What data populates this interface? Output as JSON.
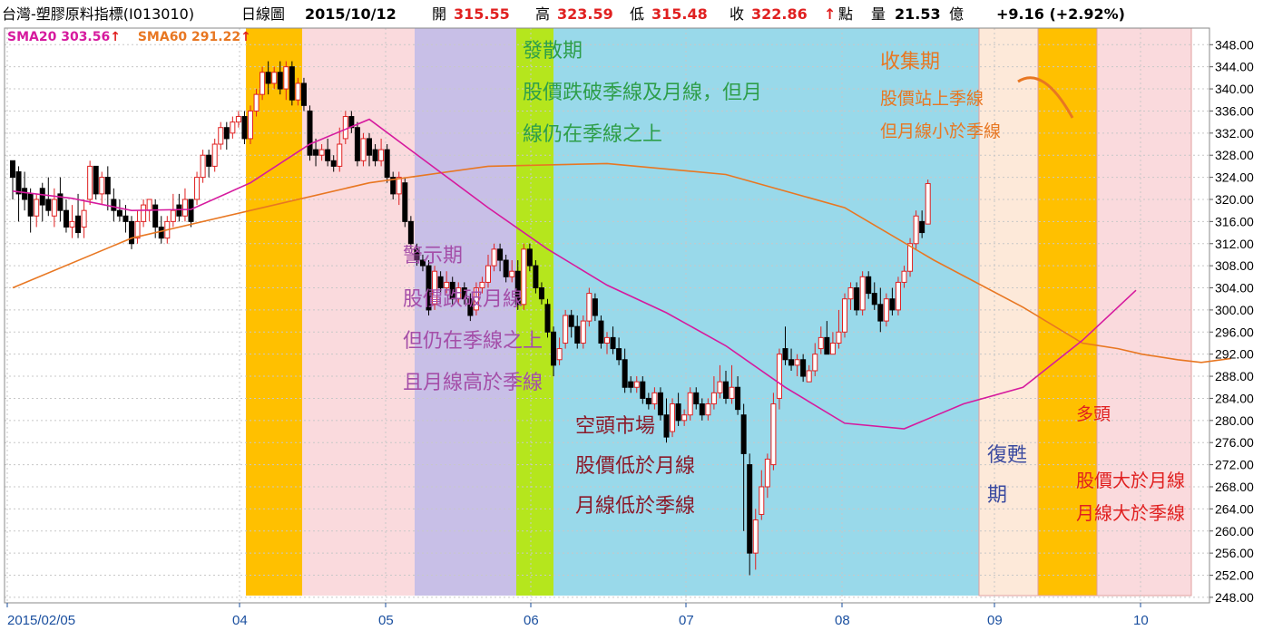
{
  "header": {
    "title": "台灣-塑膠原料指標(I013010)",
    "period": "日線圖",
    "date": "2015/10/12",
    "open_label": "開",
    "open": "315.55",
    "high_label": "高",
    "high": "323.59",
    "low_label": "低",
    "low": "315.48",
    "close_label": "收",
    "close": "322.86",
    "close_arrow": "↑",
    "point_label": "點",
    "volume_label": "量",
    "volume": "21.53",
    "volume_unit": "億",
    "change": "+9.16 (+2.92%)"
  },
  "legend": {
    "sma20": "SMA20 303.56",
    "sma20_arrow": "↑",
    "sma20_color": "#d61a9e",
    "sma60": "SMA60 291.22",
    "sma60_arrow": "↑",
    "sma60_color": "#e87722"
  },
  "annotations": {
    "diverge": [
      "發散期",
      "股價跌破季線及月線，但月",
      "線仍在季線之上"
    ],
    "warning": [
      "警示期",
      "股價跌破月線",
      "但仍在季線之上",
      "且月線高於季線"
    ],
    "bear": [
      "空頭市場",
      "股價低於月線",
      "月線低於季線"
    ],
    "collect": [
      "收集期",
      "股價站上季線",
      "但月線小於季線"
    ],
    "recovery": [
      "復甦",
      "期"
    ],
    "bull": [
      "多頭",
      "股價大於月線",
      "月線大於季線"
    ]
  },
  "colors": {
    "diverge": "#2e9e4a",
    "warning": "#a44ea8",
    "bear": "#8b1a2a",
    "collect": "#e87722",
    "recovery": "#3a4aa0",
    "bull": "#e02020",
    "candle_up": "#e02020",
    "candle_down": "#000000"
  },
  "chart_data": {
    "type": "candlestick",
    "y_ticks": [
      "348.00",
      "344.00",
      "340.00",
      "336.00",
      "332.00",
      "328.00",
      "324.00",
      "320.00",
      "316.00",
      "312.00",
      "308.00",
      "304.00",
      "300.00",
      "296.00",
      "292.00",
      "288.00",
      "284.00",
      "280.00",
      "276.00",
      "272.00",
      "268.00",
      "264.00",
      "260.00",
      "256.00",
      "252.00",
      "248.00"
    ],
    "x_ticks": [
      "2015/02/05",
      "04",
      "05",
      "06",
      "07",
      "08",
      "09",
      "10"
    ],
    "ylim": [
      247,
      351
    ],
    "candles": [
      [
        327,
        324,
        327,
        320
      ],
      [
        325,
        321,
        326,
        316
      ],
      [
        322,
        320,
        325,
        318
      ],
      [
        321,
        317,
        322,
        314
      ],
      [
        317,
        320,
        321,
        315
      ],
      [
        322,
        319,
        323,
        316
      ],
      [
        320,
        318,
        324,
        317
      ],
      [
        317,
        320,
        322,
        315
      ],
      [
        321,
        318,
        324,
        316
      ],
      [
        318,
        315,
        320,
        314
      ],
      [
        315,
        316,
        319,
        313
      ],
      [
        317,
        314,
        321,
        313
      ],
      [
        315,
        318,
        320,
        313
      ],
      [
        320,
        326,
        327,
        319
      ],
      [
        326,
        321,
        326,
        320
      ],
      [
        321,
        324,
        325,
        319
      ],
      [
        324,
        321,
        326,
        318
      ],
      [
        320,
        318,
        322,
        316
      ],
      [
        318,
        317,
        320,
        316
      ],
      [
        317,
        316,
        319,
        314
      ],
      [
        316,
        312,
        317,
        311
      ],
      [
        313,
        316,
        318,
        312
      ],
      [
        316,
        319,
        320,
        315
      ],
      [
        318,
        320,
        320,
        316
      ],
      [
        319,
        315,
        320,
        313
      ],
      [
        315,
        313,
        317,
        312
      ],
      [
        313,
        316,
        317,
        312
      ],
      [
        316,
        318,
        321,
        315
      ],
      [
        319,
        317,
        321,
        316
      ],
      [
        317,
        320,
        322,
        316
      ],
      [
        320,
        316,
        320,
        315
      ],
      [
        320,
        324,
        325,
        319
      ],
      [
        324,
        328,
        329,
        323
      ],
      [
        328,
        326,
        329,
        324
      ],
      [
        326,
        330,
        331,
        325
      ],
      [
        330,
        333,
        334,
        329
      ],
      [
        333,
        331,
        334,
        329
      ],
      [
        332,
        334,
        335,
        331
      ],
      [
        334,
        335,
        336,
        333
      ],
      [
        335,
        331,
        336,
        330
      ],
      [
        331,
        336,
        337,
        330
      ],
      [
        336,
        339,
        340,
        335
      ],
      [
        339,
        343,
        344,
        338
      ],
      [
        343,
        341,
        345,
        339
      ],
      [
        341,
        343,
        344,
        340
      ],
      [
        343,
        340,
        345,
        339
      ],
      [
        340,
        344,
        345,
        338
      ],
      [
        344,
        338,
        345,
        337
      ],
      [
        338,
        341,
        342,
        337
      ],
      [
        341,
        337,
        342,
        336
      ],
      [
        336,
        328,
        337,
        327
      ],
      [
        329,
        328,
        331,
        326
      ],
      [
        328,
        329,
        330,
        327
      ],
      [
        329,
        327,
        331,
        326
      ],
      [
        327,
        326,
        328,
        325
      ],
      [
        326,
        330,
        333,
        325
      ],
      [
        331,
        335,
        336,
        330
      ],
      [
        335,
        333,
        336,
        332
      ],
      [
        333,
        327,
        334,
        326
      ],
      [
        327,
        331,
        332,
        326
      ],
      [
        331,
        328,
        332,
        326
      ],
      [
        329,
        327,
        330,
        326
      ],
      [
        327,
        329,
        331,
        326
      ],
      [
        329,
        324,
        330,
        323
      ],
      [
        324,
        321,
        325,
        320
      ],
      [
        321,
        324,
        325,
        319
      ],
      [
        323,
        316,
        324,
        315
      ],
      [
        316,
        312,
        317,
        311
      ],
      [
        311,
        309,
        312,
        308
      ],
      [
        309,
        308,
        310,
        307
      ],
      [
        308,
        300,
        309,
        299
      ],
      [
        301,
        307,
        308,
        300
      ],
      [
        306,
        304,
        307,
        303
      ],
      [
        304,
        305,
        307,
        303
      ],
      [
        305,
        302,
        306,
        301
      ],
      [
        302,
        304,
        305,
        301
      ],
      [
        304,
        302,
        305,
        301
      ],
      [
        302,
        299,
        303,
        298
      ],
      [
        300,
        304,
        305,
        299
      ],
      [
        304,
        305,
        306,
        303
      ],
      [
        305,
        308,
        310,
        304
      ],
      [
        308,
        311,
        312,
        307
      ],
      [
        311,
        309,
        312,
        307
      ],
      [
        309,
        306,
        310,
        305
      ],
      [
        306,
        307,
        309,
        305
      ],
      [
        307,
        301,
        309,
        300
      ],
      [
        301,
        311,
        312,
        300
      ],
      [
        311,
        308,
        312,
        307
      ],
      [
        308,
        304,
        309,
        303
      ],
      [
        304,
        302,
        305,
        301
      ],
      [
        301,
        296,
        302,
        295
      ],
      [
        296,
        290,
        297,
        288
      ],
      [
        291,
        293,
        295,
        290
      ],
      [
        294,
        299,
        300,
        293
      ],
      [
        299,
        297,
        300,
        295
      ],
      [
        297,
        294,
        299,
        293
      ],
      [
        294,
        298,
        299,
        293
      ],
      [
        298,
        303,
        304,
        297
      ],
      [
        302,
        299,
        303,
        298
      ],
      [
        298,
        294,
        299,
        293
      ],
      [
        294,
        295,
        296,
        292
      ],
      [
        295,
        293,
        297,
        292
      ],
      [
        293,
        291,
        295,
        290
      ],
      [
        291,
        286,
        293,
        285
      ],
      [
        287,
        286,
        288,
        285
      ],
      [
        286,
        287,
        288,
        285
      ],
      [
        287,
        284,
        288,
        283
      ],
      [
        284,
        283,
        285,
        282
      ],
      [
        283,
        285,
        286,
        282
      ],
      [
        285,
        281,
        286,
        280
      ],
      [
        281,
        277,
        284,
        276
      ],
      [
        278,
        283,
        284,
        277
      ],
      [
        283,
        280,
        285,
        279
      ],
      [
        280,
        281,
        282,
        279
      ],
      [
        281,
        285,
        286,
        280
      ],
      [
        285,
        283,
        286,
        282
      ],
      [
        283,
        281,
        284,
        280
      ],
      [
        281,
        283,
        284,
        280
      ],
      [
        283,
        285,
        288,
        282
      ],
      [
        285,
        287,
        290,
        284
      ],
      [
        287,
        284,
        289,
        283
      ],
      [
        284,
        286,
        290,
        283
      ],
      [
        286,
        282,
        288,
        281
      ],
      [
        281,
        274,
        283,
        260
      ],
      [
        272,
        256,
        274,
        252
      ],
      [
        256,
        262,
        264,
        253
      ],
      [
        263,
        268,
        271,
        262
      ],
      [
        268,
        273,
        274,
        266
      ],
      [
        272,
        283,
        285,
        271
      ],
      [
        284,
        292,
        293,
        282
      ],
      [
        293,
        291,
        297,
        290
      ],
      [
        291,
        290,
        293,
        289
      ],
      [
        290,
        291,
        292,
        288
      ],
      [
        291,
        288,
        292,
        287
      ],
      [
        287,
        289,
        290,
        287
      ],
      [
        289,
        292,
        294,
        288
      ],
      [
        293,
        295,
        297,
        292
      ],
      [
        295,
        292,
        298,
        292
      ],
      [
        292,
        294,
        296,
        292
      ],
      [
        294,
        296,
        300,
        293
      ],
      [
        296,
        302,
        303,
        295
      ],
      [
        302,
        304,
        305,
        300
      ],
      [
        304,
        300,
        305,
        299
      ],
      [
        300,
        306,
        307,
        299
      ],
      [
        306,
        303,
        307,
        302
      ],
      [
        303,
        301,
        305,
        300
      ],
      [
        301,
        298,
        304,
        296
      ],
      [
        298,
        302,
        303,
        297
      ],
      [
        302,
        300,
        304,
        299
      ],
      [
        300,
        305,
        306,
        299
      ],
      [
        305,
        307,
        308,
        304
      ],
      [
        307,
        312,
        313,
        306
      ],
      [
        312,
        317,
        318,
        311
      ],
      [
        316,
        314,
        318,
        313
      ],
      [
        315.55,
        322.86,
        323.59,
        315.48
      ]
    ],
    "sma20": [
      [
        0,
        321.5
      ],
      [
        10,
        320.2
      ],
      [
        20,
        318.0
      ],
      [
        30,
        318.2
      ],
      [
        40,
        323.0
      ],
      [
        50,
        330.0
      ],
      [
        60,
        334.5
      ],
      [
        70,
        326.5
      ],
      [
        80,
        318.5
      ],
      [
        90,
        311.0
      ],
      [
        100,
        304.5
      ],
      [
        110,
        299.5
      ],
      [
        120,
        293.5
      ],
      [
        130,
        286.0
      ],
      [
        140,
        279.5
      ],
      [
        150,
        278.5
      ],
      [
        160,
        283.0
      ],
      [
        170,
        286.0
      ],
      [
        180,
        294.5
      ],
      [
        189,
        303.56
      ]
    ],
    "sma60": [
      [
        0,
        304.0
      ],
      [
        20,
        313.0
      ],
      [
        40,
        318.0
      ],
      [
        60,
        323.0
      ],
      [
        80,
        326.0
      ],
      [
        100,
        326.5
      ],
      [
        120,
        324.5
      ],
      [
        140,
        318.5
      ],
      [
        155,
        309.0
      ],
      [
        170,
        300.5
      ],
      [
        180,
        294.0
      ],
      [
        186,
        293.0
      ],
      [
        190,
        292.0
      ],
      [
        196,
        291.0
      ],
      [
        200,
        290.5
      ],
      [
        205,
        291.22
      ]
    ],
    "zones": [
      {
        "from": 0,
        "to": 0,
        "color": "#ffffff"
      }
    ]
  }
}
